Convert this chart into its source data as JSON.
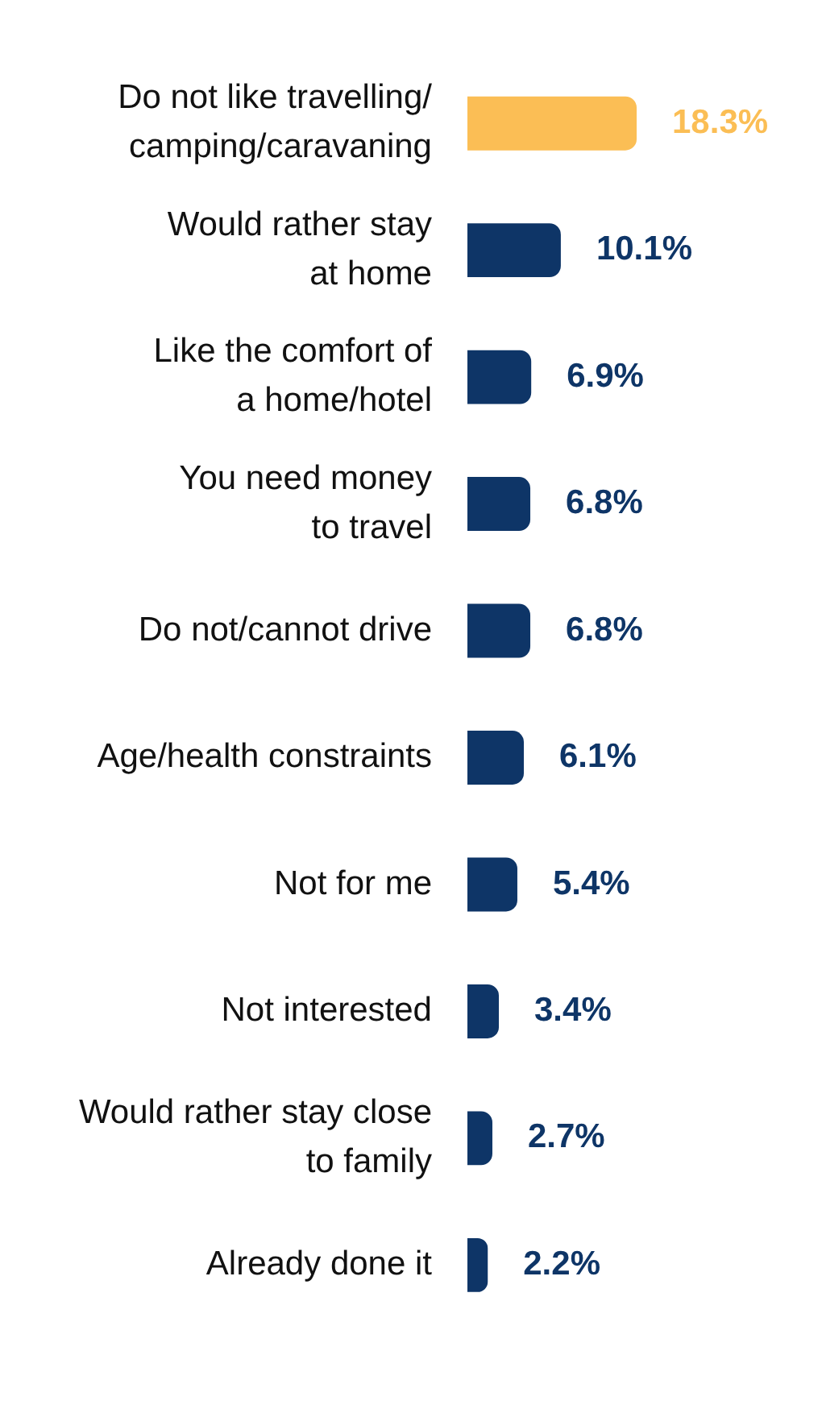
{
  "chart_data": {
    "type": "bar",
    "orientation": "horizontal",
    "categories": [
      "Do not like travelling/\ncamping/caravaning",
      "Would rather stay\nat home",
      "Like the comfort of\na home/hotel",
      "You need money\nto travel",
      "Do not/cannot drive",
      "Age/health constraints",
      "Not for me",
      "Not interested",
      "Would rather stay close\nto family",
      "Already done it"
    ],
    "values": [
      18.3,
      10.1,
      6.9,
      6.8,
      6.8,
      6.1,
      5.4,
      3.4,
      2.7,
      2.2
    ],
    "value_labels": [
      "18.3%",
      "10.1%",
      "6.9%",
      "6.8%",
      "6.8%",
      "6.1%",
      "5.4%",
      "3.4%",
      "2.7%",
      "2.2%"
    ],
    "colors": [
      "#fbbe55",
      "#0e3567",
      "#0e3567",
      "#0e3567",
      "#0e3567",
      "#0e3567",
      "#0e3567",
      "#0e3567",
      "#0e3567",
      "#0e3567"
    ],
    "legend": false,
    "grid": false
  }
}
